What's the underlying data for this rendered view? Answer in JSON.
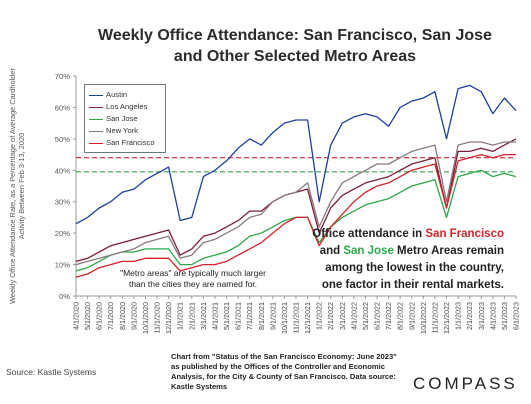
{
  "title_line1": "Weekly Office Attendance: San Francisco, San Jose",
  "title_line2": "and Other Selected Metro Areas",
  "ylabel": "Weekly Office Attendance  Rate, as a Percentage of Average Cardholder Activity Between Feb 3-13, 2020",
  "annotation": {
    "line1": "Office attendance in ",
    "sf": "San Francisco",
    "line2a": "and ",
    "sj": "San Jose",
    "line2b": " Metro Areas remain",
    "line3": "among the lowest in the country,",
    "line4": "one factor in their rental markets."
  },
  "metro_note": "\"Metro areas\" are typically much larger than the cities they are named for.",
  "source_left": "Source: Kastle Systems",
  "source_mid": "Chart from \"Status of the San Francisco Economy: June 2023\" as published by the Offices of the Controller and Economic Analysis, for the City & County of San Francisco. Data source:  Kastle Systems",
  "logo": "COMPASS",
  "colors": {
    "Austin": "#1f3fa0",
    "Los Angeles": "#7a1f3a",
    "San Jose": "#2ea84a",
    "New York": "#8a7a7e",
    "San Francisco": "#d2232a",
    "axis": "#999999"
  },
  "chart_data": {
    "type": "line",
    "ylim": [
      0,
      70
    ],
    "yticks": [
      "0%",
      "10%",
      "20%",
      "30%",
      "40%",
      "50%",
      "60%",
      "70%"
    ],
    "x": [
      "4/1/2020",
      "5/1/2020",
      "6/1/2020",
      "7/1/2020",
      "8/1/2020",
      "9/1/2020",
      "10/1/2020",
      "11/1/2020",
      "12/1/2020",
      "1/1/2021",
      "2/1/2021",
      "3/1/2021",
      "4/1/2021",
      "5/1/2021",
      "6/1/2021",
      "7/1/2021",
      "8/1/2021",
      "9/1/2021",
      "10/1/2021",
      "11/1/2021",
      "12/1/2021",
      "1/1/2022",
      "2/1/2022",
      "3/1/2022",
      "4/1/2022",
      "5/1/2022",
      "6/1/2022",
      "7/1/2022",
      "8/1/2022",
      "9/1/2022",
      "10/1/2022",
      "11/1/2022",
      "12/1/2022",
      "1/1/2023",
      "2/1/2023",
      "3/1/2023",
      "4/1/2023",
      "5/1/2023",
      "6/1/2023"
    ],
    "series": [
      {
        "name": "Austin",
        "values": [
          23,
          25,
          28,
          30,
          33,
          34,
          37,
          39,
          41,
          24,
          25,
          38,
          40,
          43,
          47,
          50,
          48,
          52,
          55,
          56,
          56,
          30,
          48,
          55,
          57,
          58,
          57,
          54,
          60,
          62,
          63,
          65,
          50,
          66,
          67,
          65,
          58,
          63,
          59
        ]
      },
      {
        "name": "Los Angeles",
        "values": [
          11,
          12,
          14,
          16,
          17,
          18,
          19,
          20,
          21,
          13,
          15,
          19,
          20,
          22,
          24,
          27,
          27,
          30,
          32,
          33,
          34,
          20,
          28,
          32,
          34,
          36,
          37,
          38,
          40,
          42,
          43,
          44,
          28,
          46,
          46,
          47,
          46,
          48,
          50
        ]
      },
      {
        "name": "San Jose",
        "values": [
          8,
          9,
          11,
          13,
          14,
          14,
          15,
          15,
          15,
          10,
          10,
          12,
          13,
          14,
          16,
          19,
          20,
          22,
          24,
          25,
          25,
          17,
          22,
          25,
          27,
          29,
          30,
          31,
          33,
          35,
          36,
          37,
          25,
          38,
          39,
          40,
          38,
          39,
          38
        ]
      },
      {
        "name": "New York",
        "values": [
          10,
          11,
          12,
          13,
          14,
          15,
          17,
          18,
          19,
          12,
          13,
          17,
          18,
          20,
          22,
          25,
          26,
          30,
          32,
          33,
          36,
          22,
          30,
          36,
          38,
          40,
          42,
          42,
          44,
          46,
          47,
          48,
          30,
          48,
          49,
          49,
          48,
          49,
          49
        ]
      },
      {
        "name": "San Francisco",
        "values": [
          6,
          7,
          9,
          10,
          11,
          11,
          12,
          12,
          12,
          8,
          9,
          10,
          10,
          11,
          13,
          15,
          17,
          20,
          23,
          25,
          25,
          16,
          22,
          26,
          30,
          33,
          35,
          36,
          38,
          40,
          41,
          42,
          28,
          43,
          44,
          45,
          44,
          45,
          45
        ]
      }
    ],
    "reference_lines": [
      {
        "series": "San Francisco",
        "value": 44
      },
      {
        "series": "San Jose",
        "value": 39.5
      }
    ],
    "legend": "top-left",
    "grid": false
  }
}
